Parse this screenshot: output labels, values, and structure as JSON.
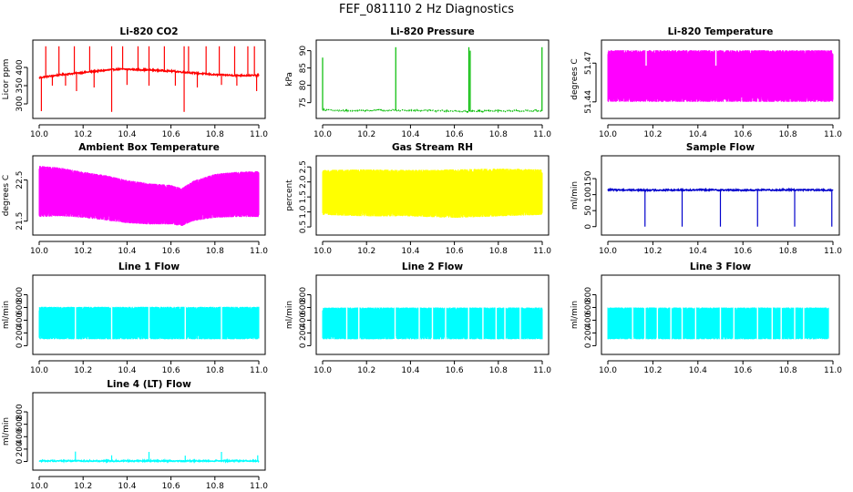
{
  "page_title": "FEF_081110  2 Hz Diagnostics",
  "chart_data": [
    {
      "type": "line",
      "title": "Li-820 CO2",
      "ylabel": "Licor ppm",
      "color": "#ff0000",
      "xlim": [
        10.0,
        11.0
      ],
      "ylim": [
        270,
        465
      ],
      "xticks": [
        "10.0",
        "10.2",
        "10.4",
        "10.6",
        "10.8",
        "11.0"
      ],
      "yticks": [
        "300",
        "350",
        "400"
      ],
      "ytick_vals": [
        300,
        350,
        400
      ],
      "series": [
        {
          "style": "line",
          "x": [
            10.0,
            10.1,
            10.2,
            10.3,
            10.35,
            10.4,
            10.5,
            10.6,
            10.7,
            10.8,
            10.9,
            11.0
          ],
          "values": [
            372,
            380,
            386,
            392,
            395,
            395,
            393,
            390,
            385,
            380,
            378,
            378
          ]
        }
      ],
      "spikes_up": [
        {
          "x": 10.03,
          "top": 458
        },
        {
          "x": 10.09,
          "top": 458
        },
        {
          "x": 10.16,
          "top": 458
        },
        {
          "x": 10.23,
          "top": 458
        },
        {
          "x": 10.33,
          "top": 458
        },
        {
          "x": 10.38,
          "top": 458
        },
        {
          "x": 10.45,
          "top": 458
        },
        {
          "x": 10.5,
          "top": 458
        },
        {
          "x": 10.57,
          "top": 458
        },
        {
          "x": 10.66,
          "top": 458
        },
        {
          "x": 10.68,
          "top": 458
        },
        {
          "x": 10.76,
          "top": 458
        },
        {
          "x": 10.82,
          "top": 458
        },
        {
          "x": 10.89,
          "top": 458
        },
        {
          "x": 10.95,
          "top": 458
        },
        {
          "x": 10.98,
          "top": 458
        }
      ],
      "spikes_down": [
        {
          "x": 10.01,
          "bottom": 280
        },
        {
          "x": 10.06,
          "bottom": 350
        },
        {
          "x": 10.12,
          "bottom": 350
        },
        {
          "x": 10.17,
          "bottom": 335
        },
        {
          "x": 10.25,
          "bottom": 345
        },
        {
          "x": 10.33,
          "bottom": 278
        },
        {
          "x": 10.4,
          "bottom": 352
        },
        {
          "x": 10.5,
          "bottom": 350
        },
        {
          "x": 10.62,
          "bottom": 350
        },
        {
          "x": 10.66,
          "bottom": 278
        },
        {
          "x": 10.72,
          "bottom": 345
        },
        {
          "x": 10.83,
          "bottom": 352
        },
        {
          "x": 10.9,
          "bottom": 350
        },
        {
          "x": 10.99,
          "bottom": 335
        }
      ]
    },
    {
      "type": "line",
      "title": "Li-820 Pressure",
      "ylabel": "kPa",
      "color": "#00bb00",
      "xlim": [
        10.0,
        11.0
      ],
      "ylim": [
        71.5,
        92
      ],
      "xticks": [
        "10.0",
        "10.2",
        "10.4",
        "10.6",
        "10.8",
        "11.0"
      ],
      "yticks": [
        "75",
        "80",
        "85",
        "90"
      ],
      "ytick_vals": [
        75,
        80,
        85,
        90
      ],
      "series": [
        {
          "style": "dotted",
          "x": [
            10.0,
            10.05,
            10.3,
            10.5,
            10.66,
            10.8,
            11.0
          ],
          "values": [
            73.0,
            72.7,
            72.8,
            72.7,
            72.5,
            72.6,
            72.7
          ]
        }
      ],
      "spikes_up": [
        {
          "x": 10.0,
          "top": 88
        },
        {
          "x": 10.333,
          "top": 91
        },
        {
          "x": 10.666,
          "top": 91
        },
        {
          "x": 10.672,
          "top": 90
        },
        {
          "x": 10.999,
          "top": 91
        }
      ],
      "spikes_down": []
    },
    {
      "type": "area",
      "title": "Li-820 Temperature",
      "ylabel": "degrees C",
      "color": "#ff00ff",
      "xlim": [
        10.0,
        11.0
      ],
      "ylim": [
        51.43,
        51.485
      ],
      "xticks": [
        "10.0",
        "10.2",
        "10.4",
        "10.6",
        "10.8",
        "11.0"
      ],
      "yticks": [
        "51.44",
        "51.47"
      ],
      "ytick_vals": [
        51.44,
        51.47
      ],
      "band": {
        "x": [
          10.0,
          11.0
        ],
        "low": [
          51.44,
          51.44
        ],
        "high": [
          51.48,
          51.48
        ]
      },
      "gaps": [
        {
          "x": 10.17,
          "y0": 51.468,
          "y1": 51.48
        },
        {
          "x": 10.48,
          "y0": 51.468,
          "y1": 51.48
        }
      ]
    },
    {
      "type": "area",
      "title": "Ambient Box Temperature",
      "ylabel": "degrees C",
      "color": "#ff00ff",
      "xlim": [
        10.0,
        11.0
      ],
      "ylim": [
        21.25,
        23.0
      ],
      "xticks": [
        "10.0",
        "10.2",
        "10.4",
        "10.6",
        "10.8",
        "11.0"
      ],
      "yticks": [
        "21.5",
        "22.5"
      ],
      "ytick_vals": [
        21.5,
        22.5
      ],
      "band": {
        "x": [
          10.0,
          10.1,
          10.2,
          10.3,
          10.4,
          10.5,
          10.6,
          10.65,
          10.7,
          10.8,
          10.9,
          11.0
        ],
        "low": [
          21.6,
          21.62,
          21.58,
          21.52,
          21.45,
          21.42,
          21.42,
          21.38,
          21.5,
          21.58,
          21.6,
          21.6
        ],
        "high": [
          22.85,
          22.8,
          22.7,
          22.62,
          22.5,
          22.42,
          22.38,
          22.3,
          22.48,
          22.65,
          22.7,
          22.72
        ]
      }
    },
    {
      "type": "area",
      "title": "Gas Stream RH",
      "ylabel": "percent",
      "color": "#ffff00",
      "xlim": [
        10.0,
        11.0
      ],
      "ylim": [
        0.35,
        2.75
      ],
      "xticks": [
        "10.0",
        "10.2",
        "10.4",
        "10.6",
        "10.8",
        "11.0"
      ],
      "yticks": [
        "0.5",
        "1.0",
        "1.5",
        "2.0",
        "2.5"
      ],
      "ytick_vals": [
        0.5,
        1.0,
        1.5,
        2.0,
        2.5
      ],
      "band": {
        "x": [
          10.0,
          10.2,
          10.4,
          10.6,
          10.8,
          11.0
        ],
        "low": [
          0.9,
          0.85,
          0.85,
          0.8,
          0.85,
          0.9
        ],
        "high": [
          2.4,
          2.42,
          2.4,
          2.42,
          2.45,
          2.42
        ]
      }
    },
    {
      "type": "line",
      "title": "Sample Flow",
      "ylabel": "ml/min",
      "color": "#0000cc",
      "xlim": [
        10.0,
        11.0
      ],
      "ylim": [
        -15,
        210
      ],
      "xticks": [
        "10.0",
        "10.2",
        "10.4",
        "10.6",
        "10.8",
        "11.0"
      ],
      "yticks": [
        "0",
        "50",
        "100",
        "150"
      ],
      "ytick_vals": [
        0,
        50,
        100,
        150
      ],
      "series": [
        {
          "style": "line",
          "x": [
            10.0,
            10.2,
            10.4,
            10.6,
            10.8,
            11.0
          ],
          "values": [
            115,
            114,
            115,
            114,
            115,
            114
          ]
        }
      ],
      "spikes_up": [],
      "spikes_down": [
        {
          "x": 10.165,
          "bottom": 0
        },
        {
          "x": 10.33,
          "bottom": 0
        },
        {
          "x": 10.5,
          "bottom": 0
        },
        {
          "x": 10.665,
          "bottom": 0
        },
        {
          "x": 10.83,
          "bottom": 0
        },
        {
          "x": 10.995,
          "bottom": 0
        }
      ]
    },
    {
      "type": "area",
      "title": "Line 1 Flow",
      "ylabel": "ml/min",
      "color": "#00ffff",
      "xlim": [
        10.0,
        11.0
      ],
      "ylim": [
        -80,
        1050
      ],
      "xticks": [
        "10.0",
        "10.2",
        "10.4",
        "10.6",
        "10.8",
        "11.0"
      ],
      "yticks": [
        "0",
        "200",
        "400",
        "600",
        "800"
      ],
      "ytick_vals": [
        0,
        200,
        400,
        600,
        800
      ],
      "band": {
        "x": [
          10.0,
          11.0
        ],
        "low": [
          100,
          100
        ],
        "high": [
          610,
          610
        ]
      },
      "gaps": [
        {
          "x": 10.165,
          "y0": 100,
          "y1": 610
        },
        {
          "x": 10.33,
          "y0": 100,
          "y1": 610
        },
        {
          "x": 10.5,
          "y0": 100,
          "y1": 610
        },
        {
          "x": 10.665,
          "y0": 100,
          "y1": 610
        },
        {
          "x": 10.83,
          "y0": 100,
          "y1": 610
        }
      ]
    },
    {
      "type": "area",
      "title": "Line 2 Flow",
      "ylabel": "ml/min",
      "color": "#00ffff",
      "xlim": [
        10.0,
        11.0
      ],
      "ylim": [
        -80,
        1050
      ],
      "xticks": [
        "10.0",
        "10.2",
        "10.4",
        "10.6",
        "10.8",
        "11.0"
      ],
      "yticks": [
        "0",
        "200",
        "400",
        "600",
        "800"
      ],
      "ytick_vals": [
        0,
        200,
        400,
        600,
        800
      ],
      "band": {
        "x": [
          10.0,
          11.0
        ],
        "low": [
          100,
          100
        ],
        "high": [
          600,
          600
        ]
      },
      "gaps": [
        {
          "x": 10.11,
          "y0": 100,
          "y1": 600
        },
        {
          "x": 10.165,
          "y0": 100,
          "y1": 600
        },
        {
          "x": 10.33,
          "y0": 100,
          "y1": 600
        },
        {
          "x": 10.44,
          "y0": 100,
          "y1": 600
        },
        {
          "x": 10.5,
          "y0": 100,
          "y1": 600
        },
        {
          "x": 10.56,
          "y0": 100,
          "y1": 600
        },
        {
          "x": 10.665,
          "y0": 100,
          "y1": 600
        },
        {
          "x": 10.73,
          "y0": 100,
          "y1": 600
        },
        {
          "x": 10.79,
          "y0": 100,
          "y1": 600
        },
        {
          "x": 10.83,
          "y0": 100,
          "y1": 600
        },
        {
          "x": 10.9,
          "y0": 100,
          "y1": 600
        }
      ]
    },
    {
      "type": "area",
      "title": "Line 3 Flow",
      "ylabel": "ml/min",
      "color": "#00ffff",
      "xlim": [
        10.0,
        11.0
      ],
      "ylim": [
        -80,
        1050
      ],
      "xticks": [
        "10.0",
        "10.2",
        "10.4",
        "10.6",
        "10.8",
        "11.0"
      ],
      "yticks": [
        "0",
        "200",
        "400",
        "600",
        "800"
      ],
      "ytick_vals": [
        0,
        200,
        400,
        600,
        800
      ],
      "band": {
        "x": [
          10.0,
          10.98
        ],
        "low": [
          100,
          100
        ],
        "high": [
          600,
          600
        ]
      },
      "gaps": [
        {
          "x": 10.11,
          "y0": 100,
          "y1": 600
        },
        {
          "x": 10.165,
          "y0": 100,
          "y1": 600
        },
        {
          "x": 10.22,
          "y0": 100,
          "y1": 600
        },
        {
          "x": 10.28,
          "y0": 100,
          "y1": 600
        },
        {
          "x": 10.33,
          "y0": 100,
          "y1": 600
        },
        {
          "x": 10.39,
          "y0": 100,
          "y1": 600
        },
        {
          "x": 10.5,
          "y0": 100,
          "y1": 600
        },
        {
          "x": 10.56,
          "y0": 100,
          "y1": 600
        },
        {
          "x": 10.665,
          "y0": 100,
          "y1": 600
        },
        {
          "x": 10.73,
          "y0": 100,
          "y1": 600
        },
        {
          "x": 10.77,
          "y0": 100,
          "y1": 600
        },
        {
          "x": 10.83,
          "y0": 100,
          "y1": 600
        },
        {
          "x": 10.87,
          "y0": 100,
          "y1": 600
        }
      ]
    },
    {
      "type": "line",
      "title": "Line 4 (LT) Flow",
      "ylabel": "ml/min",
      "color": "#00ffff",
      "xlim": [
        10.0,
        11.0
      ],
      "ylim": [
        -80,
        1050
      ],
      "xticks": [
        "10.0",
        "10.2",
        "10.4",
        "10.6",
        "10.8",
        "11.0"
      ],
      "yticks": [
        "0",
        "200",
        "400",
        "600",
        "800"
      ],
      "ytick_vals": [
        0,
        200,
        400,
        600,
        800
      ],
      "series": [
        {
          "style": "line",
          "x": [
            10.0,
            11.0
          ],
          "values": [
            10,
            10
          ]
        }
      ],
      "spikes_up": [
        {
          "x": 10.165,
          "top": 160
        },
        {
          "x": 10.33,
          "top": 100
        },
        {
          "x": 10.5,
          "top": 155
        },
        {
          "x": 10.665,
          "top": 95
        },
        {
          "x": 10.83,
          "top": 155
        },
        {
          "x": 10.995,
          "top": 100
        }
      ],
      "spikes_down": []
    }
  ]
}
